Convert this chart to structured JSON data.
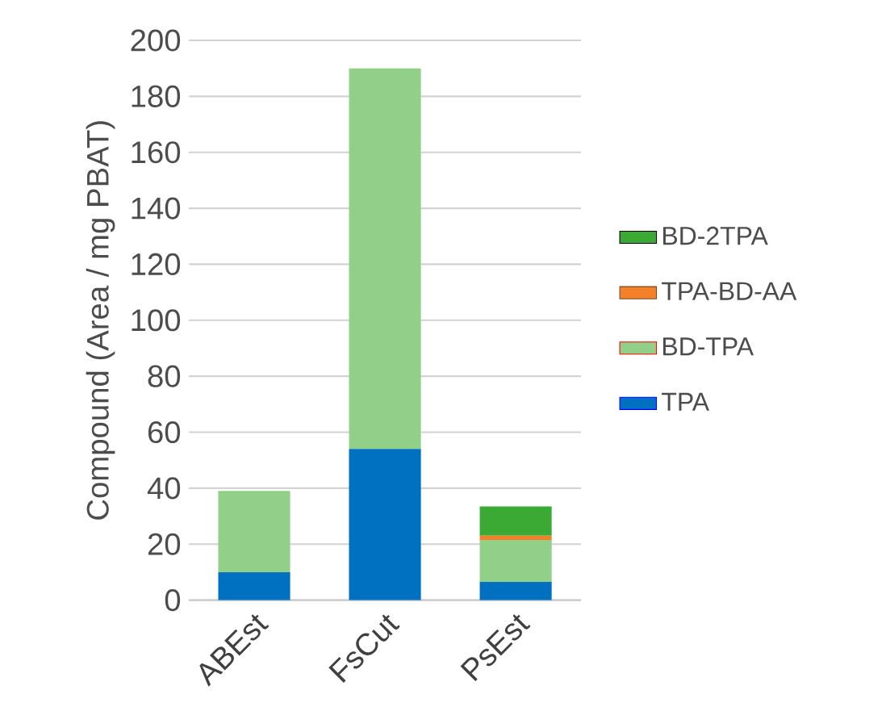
{
  "chart_data": {
    "type": "bar",
    "stacked": true,
    "ylabel": "Compound (Area / mg PBAT)",
    "categories": [
      "ABEst",
      "FsCut",
      "PsEst"
    ],
    "series": [
      {
        "name": "TPA",
        "color": "#0070c0",
        "values": [
          10,
          54,
          6.5
        ]
      },
      {
        "name": "BD-TPA",
        "color": "#92d08a",
        "values": [
          29,
          136,
          15
        ]
      },
      {
        "name": "TPA-BD-AA",
        "color": "#f4812a",
        "values": [
          0,
          0,
          1.5
        ]
      },
      {
        "name": "BD-2TPA",
        "color": "#3aaa35",
        "values": [
          0,
          0,
          10.5
        ]
      }
    ],
    "ylim": [
      0,
      200
    ],
    "yticks": [
      0,
      20,
      40,
      60,
      80,
      100,
      120,
      140,
      160,
      180,
      200
    ],
    "grid": "y",
    "legend": "right"
  }
}
